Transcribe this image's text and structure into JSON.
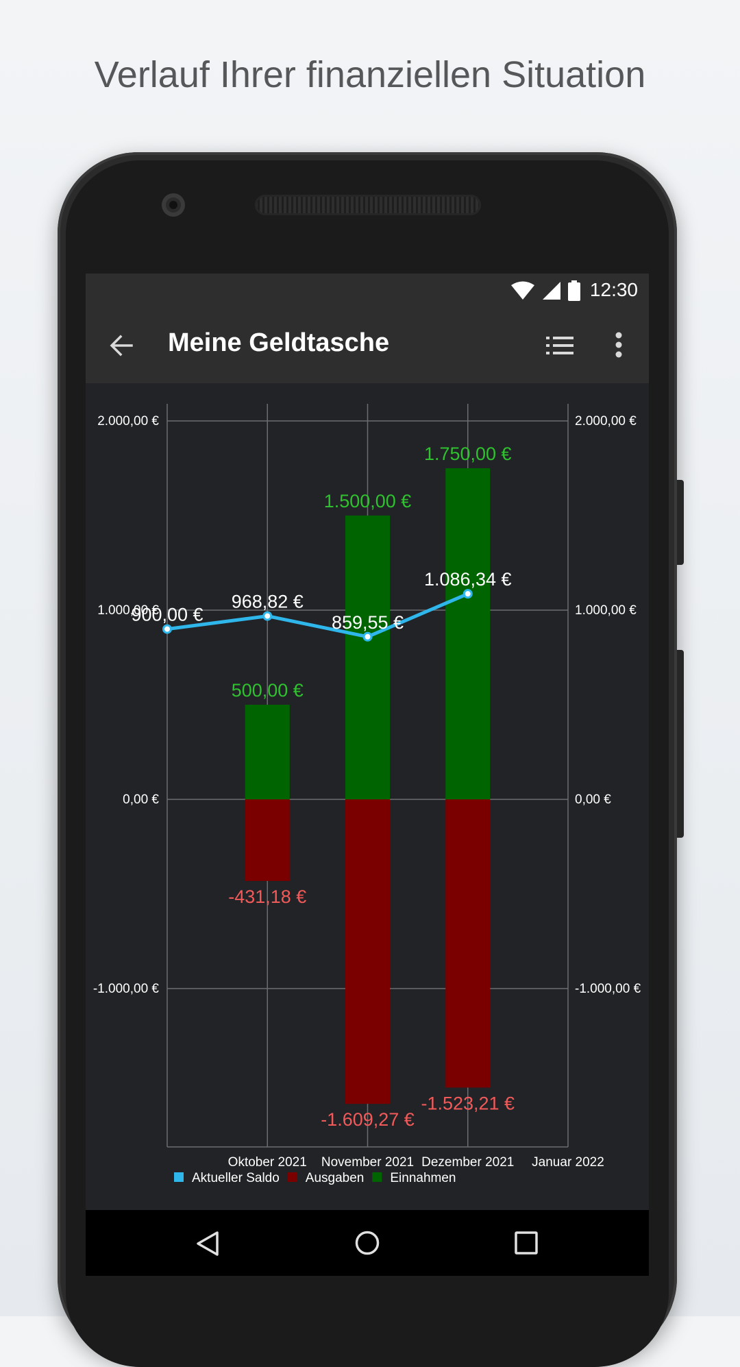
{
  "headline": "Verlauf Ihrer finanziellen Situation",
  "status_bar": {
    "time": "12:30",
    "icons": [
      "wifi-icon",
      "cell-signal-icon",
      "battery-icon"
    ]
  },
  "app_bar": {
    "title": "Meine Geldtasche",
    "icons": [
      "back-arrow-icon",
      "list-view-icon",
      "more-vert-icon"
    ]
  },
  "nav_bar": {
    "icons": [
      "nav-back-icon",
      "nav-home-icon",
      "nav-recent-apps-icon"
    ]
  },
  "colors": {
    "saldo": "#2fb6ea",
    "ausgaben": "#7a0000",
    "einnahmen": "#006400",
    "einnahmen_label": "#2fc12f",
    "ausgaben_label": "#f25a5a",
    "background": "#222326",
    "grid": "#6b6d70"
  },
  "chart_data": {
    "type": "bar",
    "x_categories": [
      "",
      "Oktober 2021",
      "November 2021",
      "Dezember 2021",
      "Januar 2022"
    ],
    "y_tick_labels": [
      "2.000,00 €",
      "1.000,00 €",
      "0,00 €",
      "-1.000,00 €"
    ],
    "y_ticks": [
      2000,
      1000,
      0,
      -1000
    ],
    "ylim": [
      -1950,
      2080
    ],
    "grid": true,
    "legend_position": "bottom-left",
    "legend": [
      "Aktueller Saldo",
      "Ausgaben",
      "Einnahmen"
    ],
    "series": [
      {
        "name": "Aktueller Saldo",
        "type": "line",
        "x_index": [
          0,
          1,
          2,
          3
        ],
        "values": [
          900,
          968.82,
          859.55,
          1086.34
        ],
        "labels": [
          "900,00 €",
          "968,82 €",
          "859,55 €",
          "1.086,34 €"
        ]
      },
      {
        "name": "Einnahmen",
        "type": "bar",
        "x_index": [
          1,
          2,
          3
        ],
        "values": [
          500,
          1500,
          1750
        ],
        "labels": [
          "500,00 €",
          "1.500,00 €",
          "1.750,00 €"
        ]
      },
      {
        "name": "Ausgaben",
        "type": "bar",
        "x_index": [
          1,
          2,
          3
        ],
        "values": [
          -431.18,
          -1609.27,
          -1523.21
        ],
        "labels": [
          "-431,18 €",
          "-1.609,27 €",
          "-1.523,21 €"
        ]
      }
    ]
  }
}
